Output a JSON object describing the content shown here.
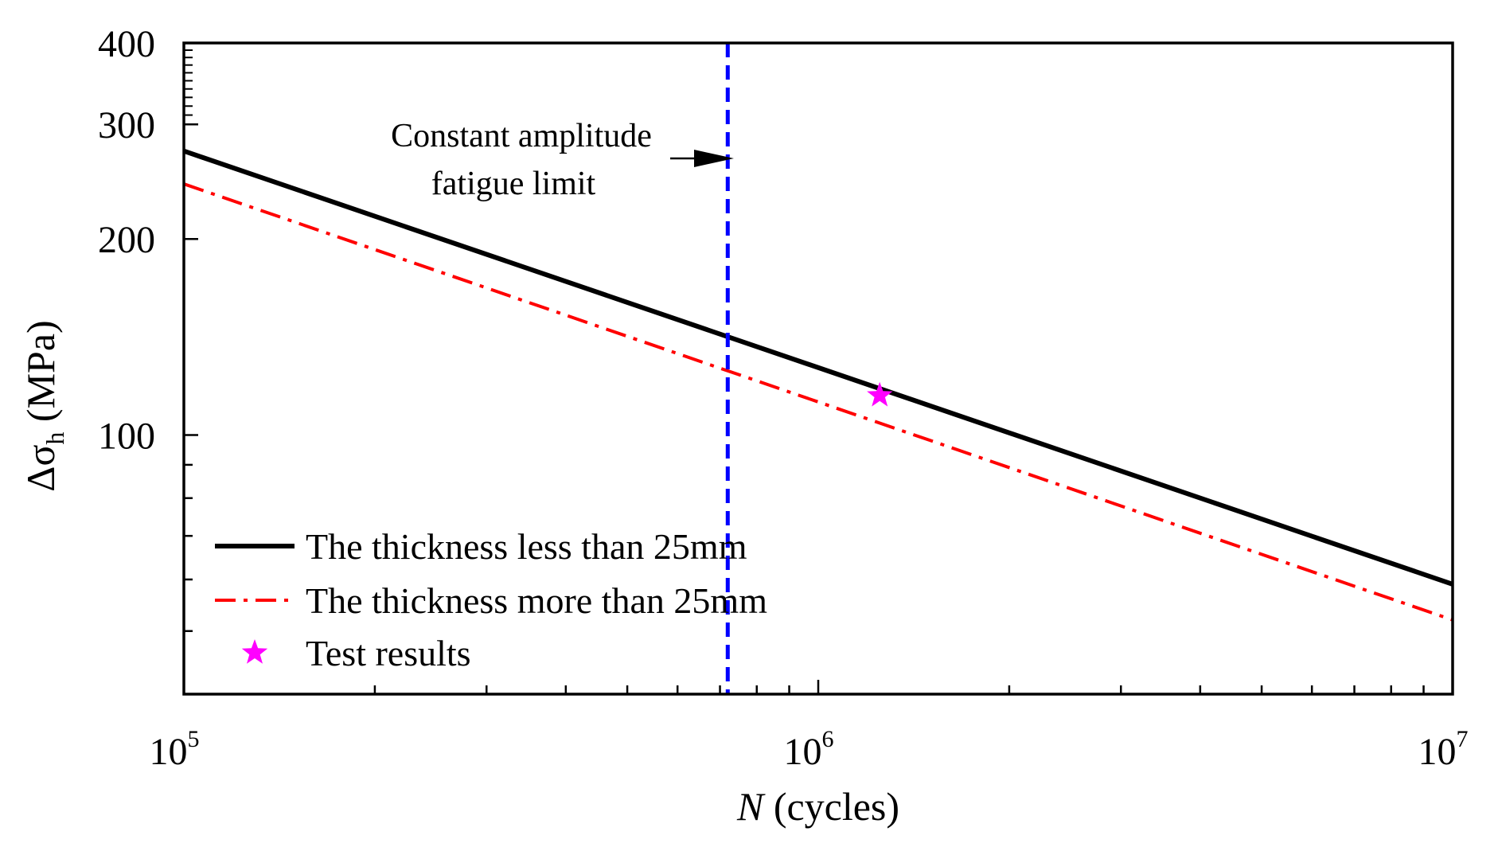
{
  "chart_data": {
    "type": "line",
    "x_scale": "log",
    "y_scale": "log",
    "xlim": [
      100000,
      10000000
    ],
    "ylim": [
      40,
      400
    ],
    "x_ticks": [
      {
        "value": 100000,
        "base": "10",
        "exp": "5"
      },
      {
        "value": 1000000,
        "base": "10",
        "exp": "6"
      },
      {
        "value": 10000000,
        "base": "10",
        "exp": "7"
      }
    ],
    "y_ticks": [
      {
        "value": 100,
        "label": "100"
      },
      {
        "value": 200,
        "label": "200"
      },
      {
        "value": 300,
        "label": "300"
      },
      {
        "value": 400,
        "label": "400"
      }
    ],
    "xlabel": {
      "italic": "N",
      "rest": " (cycles)"
    },
    "ylabel": {
      "prefix": "Δσ",
      "sub": "h",
      "suffix": " (MPa)"
    },
    "series": [
      {
        "name": "The thickness less than 25mm",
        "style": "solid",
        "color": "#000000",
        "x": [
          100000,
          10000000
        ],
        "y": [
          273,
          59
        ]
      },
      {
        "name": "The thickness more than 25mm",
        "style": "dashdot",
        "color": "#ff0000",
        "x": [
          100000,
          10000000
        ],
        "y": [
          243,
          52
        ]
      }
    ],
    "points": [
      {
        "name": "Test results",
        "color": "#ff00ff",
        "marker": "star",
        "x": 1250000,
        "y": 115
      }
    ],
    "vline": {
      "x": 720000,
      "color": "#0000ff",
      "style": "dashed"
    },
    "annotation": {
      "lines": [
        "Constant amplitude",
        "fatigue limit"
      ]
    },
    "legend_position": "bottom-left"
  }
}
